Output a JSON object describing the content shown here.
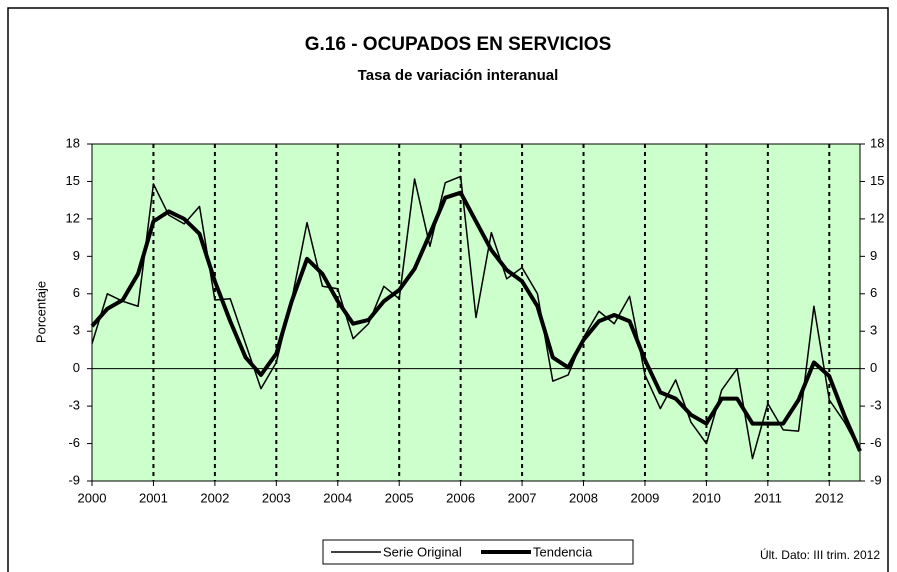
{
  "chart_data": {
    "type": "line",
    "title": "G.16 - OCUPADOS EN SERVICIOS",
    "subtitle": "Tasa de variación interanual",
    "y_label": "Porcentaje",
    "note": "Últ. Dato: III trim. 2012",
    "x": [
      2000,
      2000.25,
      2000.5,
      2000.75,
      2001,
      2001.25,
      2001.5,
      2001.75,
      2002,
      2002.25,
      2002.5,
      2002.75,
      2003,
      2003.25,
      2003.5,
      2003.75,
      2004,
      2004.25,
      2004.5,
      2004.75,
      2005,
      2005.25,
      2005.5,
      2005.75,
      2006,
      2006.25,
      2006.5,
      2006.75,
      2007,
      2007.25,
      2007.5,
      2007.75,
      2008,
      2008.25,
      2008.5,
      2008.75,
      2009,
      2009.25,
      2009.5,
      2009.75,
      2010,
      2010.25,
      2010.5,
      2010.75,
      2011,
      2011.25,
      2011.5,
      2011.75,
      2012,
      2012.25,
      2012.5
    ],
    "series": [
      {
        "name": "Serie Original",
        "color": "#000000",
        "width": 1.5,
        "values": [
          2.0,
          6.0,
          5.4,
          5.0,
          14.8,
          12.3,
          11.6,
          13.0,
          5.5,
          5.6,
          2.0,
          -1.6,
          0.5,
          5.5,
          11.7,
          6.6,
          6.4,
          2.4,
          3.6,
          6.6,
          5.6,
          15.2,
          9.8,
          14.9,
          15.4,
          4.1,
          10.9,
          7.2,
          8.1,
          6.0,
          -1.0,
          -0.5,
          2.5,
          4.6,
          3.6,
          5.8,
          -0.5,
          -3.2,
          -0.9,
          -4.3,
          -6.0,
          -1.7,
          0.0,
          -7.2,
          -2.8,
          -4.9,
          -5.0,
          5.0,
          -2.5,
          -4.3,
          -6.6
        ]
      },
      {
        "name": "Tendencia",
        "color": "#000000",
        "width": 4,
        "values": [
          3.4,
          4.8,
          5.5,
          7.6,
          11.8,
          12.6,
          12.0,
          10.8,
          7.0,
          3.8,
          0.9,
          -0.5,
          1.2,
          5.4,
          8.8,
          7.6,
          5.4,
          3.6,
          3.9,
          5.4,
          6.3,
          8.0,
          10.8,
          13.7,
          14.1,
          11.8,
          9.5,
          7.9,
          7.0,
          5.0,
          0.9,
          0.1,
          2.3,
          3.8,
          4.3,
          3.8,
          0.7,
          -1.9,
          -2.4,
          -3.7,
          -4.4,
          -2.4,
          -2.4,
          -4.4,
          -4.4,
          -4.4,
          -2.5,
          0.5,
          -0.6,
          -3.8,
          -6.6
        ]
      }
    ],
    "xlim": [
      2000,
      2012.5
    ],
    "xticks": [
      2000,
      2001,
      2002,
      2003,
      2004,
      2005,
      2006,
      2007,
      2008,
      2009,
      2010,
      2011,
      2012
    ],
    "ylim": [
      -9,
      18
    ],
    "yticks": [
      -9,
      -6,
      -3,
      0,
      3,
      6,
      9,
      12,
      15,
      18
    ],
    "plot_background": "#ccffcc",
    "legend": "bottom"
  }
}
